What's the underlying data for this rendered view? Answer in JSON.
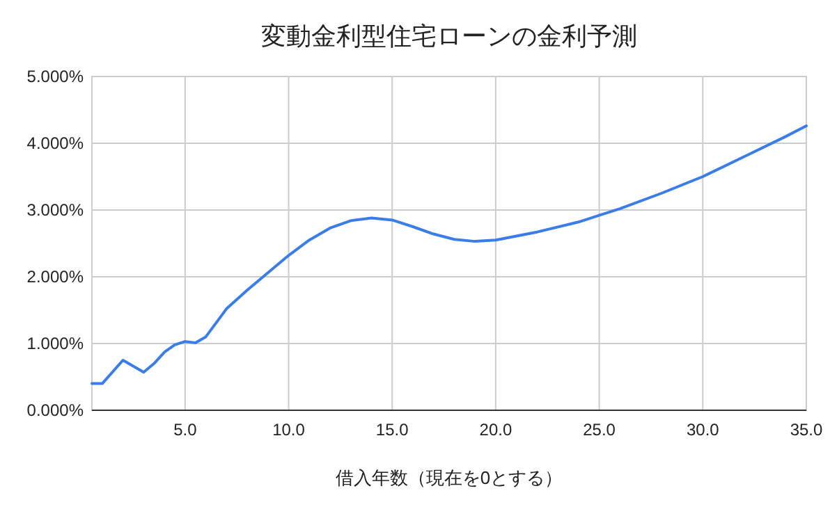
{
  "chart_data": {
    "type": "line",
    "title": "変動金利型住宅ローンの金利予測",
    "xlabel": "借入年数（現在を0とする）",
    "x": [
      0.5,
      1,
      2,
      3,
      3.5,
      4,
      4.5,
      5,
      5.5,
      6,
      7,
      8,
      9,
      10,
      11,
      12,
      13,
      14,
      15,
      16,
      17,
      18,
      19,
      20,
      22,
      24,
      25,
      26,
      28,
      30,
      32,
      34,
      35
    ],
    "series": [
      {
        "color": "#3b7de8",
        "values": [
          0.4,
          0.4,
          0.75,
          0.57,
          0.7,
          0.87,
          0.98,
          1.03,
          1.01,
          1.1,
          1.52,
          1.8,
          2.06,
          2.32,
          2.55,
          2.73,
          2.84,
          2.88,
          2.85,
          2.75,
          2.64,
          2.56,
          2.53,
          2.55,
          2.67,
          2.82,
          2.92,
          3.02,
          3.25,
          3.5,
          3.8,
          4.1,
          4.26
        ]
      }
    ],
    "xlim": [
      0.5,
      35
    ],
    "ylim": [
      0,
      5
    ],
    "xticks": [
      {
        "value": 5,
        "label": "5.0"
      },
      {
        "value": 10,
        "label": "10.0"
      },
      {
        "value": 15,
        "label": "15.0"
      },
      {
        "value": 20,
        "label": "20.0"
      },
      {
        "value": 25,
        "label": "25.0"
      },
      {
        "value": 30,
        "label": "30.0"
      },
      {
        "value": 35,
        "label": "35.0"
      }
    ],
    "yticks": [
      {
        "value": 0,
        "label": "0.000%"
      },
      {
        "value": 1,
        "label": "1.000%"
      },
      {
        "value": 2,
        "label": "2.000%"
      },
      {
        "value": 3,
        "label": "3.000%"
      },
      {
        "value": 4,
        "label": "4.000%"
      },
      {
        "value": 5,
        "label": "5.000%"
      }
    ],
    "grid": true,
    "marker": "none",
    "line_style": "solid"
  }
}
